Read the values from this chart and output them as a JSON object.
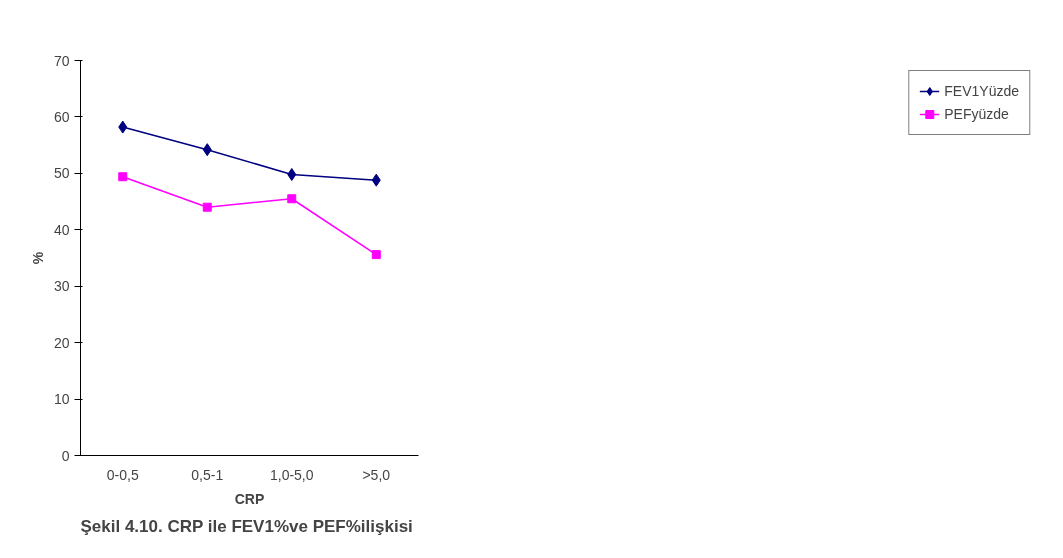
{
  "chart_data": {
    "type": "line",
    "title": "Şekil 4.10. CRP ile FEV1%ve PEF%ilişkisi",
    "xlabel": "CRP",
    "ylabel": "%",
    "categories": [
      "0-0,5",
      "0,5-1",
      "1,0-5,0",
      ">5,0"
    ],
    "series": [
      {
        "name": "FEV1Yüzde",
        "color": "#000080",
        "marker": "diamond",
        "values": [
          58.2,
          54.2,
          49.8,
          48.8
        ]
      },
      {
        "name": "PEFyüzde",
        "color": "#ff00ff",
        "marker": "square",
        "values": [
          49.4,
          44.0,
          45.5,
          35.6
        ]
      }
    ],
    "ylim": [
      0,
      70
    ],
    "yticks": [
      0,
      10,
      20,
      30,
      40,
      50,
      60,
      70
    ],
    "grid": false,
    "legend": "right"
  }
}
